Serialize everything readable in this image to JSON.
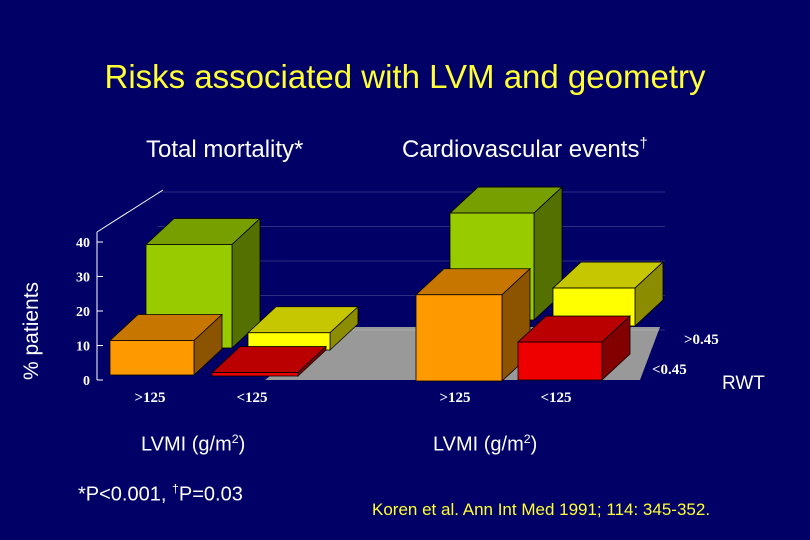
{
  "title": "Risks associated with LVM and geometry",
  "y_axis_label": "% patients",
  "panels": [
    {
      "title": "Total mortality*",
      "xlabel": "LVMI (g/m",
      "xlabel_sup": "2",
      "xlabel_end": ")"
    },
    {
      "title": "Cardiovascular events",
      "title_sup": "†",
      "xlabel": "LVMI (g/m",
      "xlabel_sup": "2",
      "xlabel_end": ")"
    }
  ],
  "rwt_label": "RWT",
  "footnote": {
    "a": "*P<0.001, ",
    "dagger": "†",
    "b": "P=0.03"
  },
  "citation": "Koren et al. Ann Int Med 1991; 114: 345-352.",
  "chart_data": {
    "type": "bar",
    "subtype": "3d-grouped",
    "y_ticks": [
      "0",
      "10",
      "20",
      "30",
      "40"
    ],
    "ylim": [
      0,
      40
    ],
    "lvmi_categories": [
      ">125",
      "<125"
    ],
    "rwt_categories": [
      ">0.45",
      "<0.45"
    ],
    "groups": [
      {
        "panel": "Total mortality*",
        "bars": [
          {
            "lvmi": ">125",
            "rwt": ">0.45",
            "value": 30,
            "color": "#99cc00"
          },
          {
            "lvmi": "<125",
            "rwt": ">0.45",
            "value": 5,
            "color": "#ffff00"
          },
          {
            "lvmi": ">125",
            "rwt": "<0.45",
            "value": 10,
            "color": "#ff9900"
          },
          {
            "lvmi": "<125",
            "rwt": "<0.45",
            "value": 1,
            "color": "#ee0000"
          }
        ]
      },
      {
        "panel": "Cardiovascular events†",
        "bars": [
          {
            "lvmi": ">125",
            "rwt": ">0.45",
            "value": 31,
            "color": "#99cc00"
          },
          {
            "lvmi": "<125",
            "rwt": ">0.45",
            "value": 11,
            "color": "#ffff00"
          },
          {
            "lvmi": ">125",
            "rwt": "<0.45",
            "value": 25,
            "color": "#ff9900"
          },
          {
            "lvmi": "<125",
            "rwt": "<0.45",
            "value": 11,
            "color": "#ee0000"
          }
        ]
      }
    ]
  }
}
